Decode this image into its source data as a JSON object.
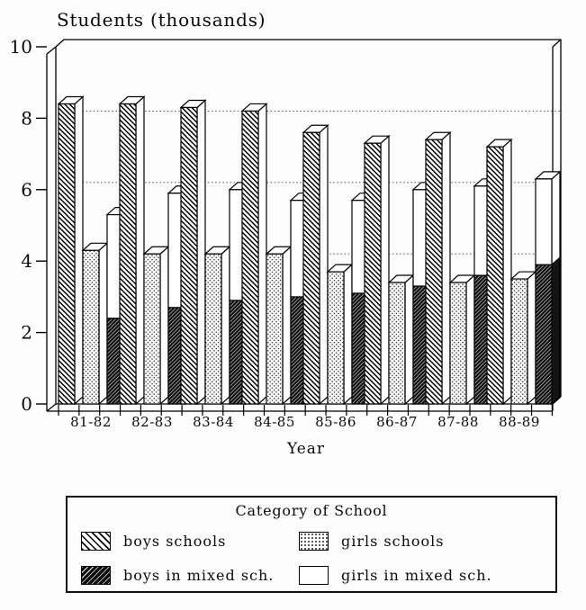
{
  "chart_data": {
    "type": "bar",
    "title": "Students (thousands)",
    "xlabel": "Year",
    "ylabel": "Students (thousands)",
    "ylim": [
      0,
      10
    ],
    "yticks": [
      0,
      2,
      4,
      6,
      8,
      10
    ],
    "gridlines_at": [
      4,
      6,
      8
    ],
    "grid": true,
    "style": "3d-oblique black-and-white hatch patterns",
    "legend_position": "bottom",
    "legend_title": "Category of School",
    "categories": [
      "81-82",
      "82-83",
      "83-84",
      "84-85",
      "85-86",
      "86-87",
      "87-88",
      "88-89"
    ],
    "series": [
      {
        "name": "boys schools",
        "pattern": "diagonal-hatch",
        "values": [
          8.4,
          8.4,
          8.3,
          8.2,
          7.6,
          7.3,
          7.4,
          7.2
        ]
      },
      {
        "name": "girls schools",
        "pattern": "stipple-dots",
        "values": [
          4.3,
          4.2,
          4.2,
          4.2,
          3.7,
          3.4,
          3.4,
          3.5
        ]
      },
      {
        "name": "boys in mixed sch.",
        "pattern": "dark-hatch",
        "stack": "mixed",
        "values": [
          2.4,
          2.7,
          2.9,
          3.0,
          3.1,
          3.3,
          3.6,
          3.9
        ]
      },
      {
        "name": "girls in mixed sch.",
        "pattern": "white",
        "stack": "mixed",
        "values": [
          2.9,
          3.2,
          3.1,
          2.7,
          2.6,
          2.7,
          2.5,
          2.4
        ]
      }
    ],
    "note": "boys in mixed sch. and girls in mixed sch. are drawn as one stacked bar (dark segment below, white segment above)"
  }
}
